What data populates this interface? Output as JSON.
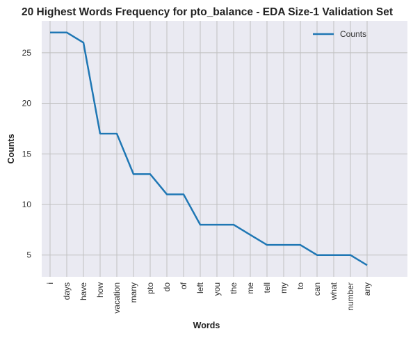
{
  "chart_data": {
    "type": "line",
    "title": "20 Highest Words Frequency for pto_balance - EDA Size-1 Validation Set",
    "xlabel": "Words",
    "ylabel": "Counts",
    "categories": [
      "i",
      "days",
      "have",
      "how",
      "vacation",
      "many",
      "pto",
      "do",
      "of",
      "left",
      "you",
      "the",
      "me",
      "tell",
      "my",
      "to",
      "can",
      "what",
      "number",
      "any"
    ],
    "series": [
      {
        "name": "Counts",
        "values": [
          27,
          27,
          26,
          17,
          17,
          13,
          13,
          11,
          11,
          8,
          8,
          8,
          7,
          6,
          6,
          6,
          5,
          5,
          5,
          4
        ],
        "color": "#1f77b4"
      }
    ],
    "yticks": [
      5,
      10,
      15,
      20,
      25
    ],
    "ylim": [
      2.85,
      28.15
    ],
    "grid": true,
    "legend_position": "top-right",
    "colors": {
      "plot_background": "#eaeaf2",
      "grid": "#c0c0c0",
      "line": "#1f77b4"
    }
  }
}
